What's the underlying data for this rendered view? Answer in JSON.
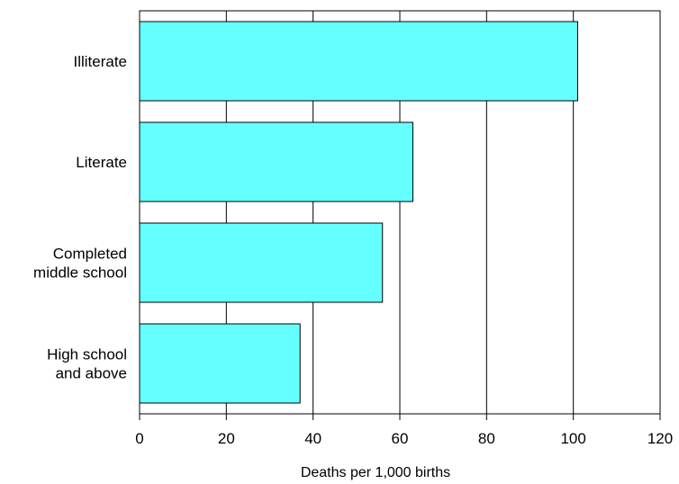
{
  "chart_data": {
    "type": "bar",
    "orientation": "horizontal",
    "categories": [
      [
        "Illiterate"
      ],
      [
        "Literate"
      ],
      [
        "Completed",
        "middle school"
      ],
      [
        "High school",
        "and above"
      ]
    ],
    "values": [
      101,
      63,
      56,
      37
    ],
    "xlabel": "Deaths per 1,000 births",
    "xlim": [
      0,
      120
    ],
    "xticks": [
      "0",
      "20",
      "40",
      "60",
      "80",
      "100",
      "120"
    ],
    "grid": "vertical",
    "bar_color": "#66FFFF"
  }
}
